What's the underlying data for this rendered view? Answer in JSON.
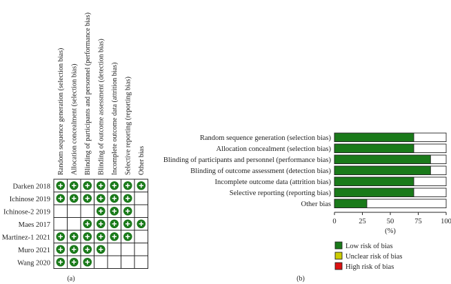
{
  "chart_data": [
    {
      "type": "table",
      "panel_label": "(a)",
      "domains": [
        "Random sequence generation (selection bias)",
        "Allocation concealment (selection bias)",
        "Blinding of participants and personnel (performance bias)",
        "Blinding of outcome assessment (detection bias)",
        "Incomplete outcome data (attrition bias)",
        "Selective reporting (reporting bias)",
        "Other bias"
      ],
      "studies": [
        {
          "name": "Darken 2018",
          "judgements": [
            "low",
            "low",
            "low",
            "low",
            "low",
            "low",
            "low"
          ]
        },
        {
          "name": "Ichinose 2019",
          "judgements": [
            "low",
            "low",
            "low",
            "low",
            "low",
            "low",
            ""
          ]
        },
        {
          "name": "Ichinose-2 2019",
          "judgements": [
            "",
            "",
            "",
            "low",
            "low",
            "low",
            ""
          ]
        },
        {
          "name": "Maes 2017",
          "judgements": [
            "",
            "",
            "low",
            "low",
            "low",
            "low",
            "low"
          ]
        },
        {
          "name": "Martinez-1 2021",
          "judgements": [
            "low",
            "low",
            "low",
            "low",
            "low",
            "low",
            ""
          ]
        },
        {
          "name": "Muro 2021",
          "judgements": [
            "low",
            "low",
            "low",
            "low",
            "",
            "",
            ""
          ]
        },
        {
          "name": "Wang 2020",
          "judgements": [
            "low",
            "low",
            "low",
            "",
            "",
            "",
            ""
          ]
        }
      ],
      "colors": {
        "low": "#1a7a1a"
      }
    },
    {
      "type": "bar",
      "orientation": "horizontal",
      "stacked": true,
      "panel_label": "(b)",
      "categories": [
        "Random sequence generation (selection bias)",
        "Allocation concealment (selection bias)",
        "Blinding of participants and personnel (performance bias)",
        "Blinding of outcome assessment (detection bias)",
        "Incomplete outcome data (attrition bias)",
        "Selective reporting (reporting bias)",
        "Other bias"
      ],
      "series": [
        {
          "name": "Low risk of bias",
          "color": "#1a7a1a",
          "values": [
            71,
            71,
            86,
            86,
            71,
            71,
            29
          ]
        },
        {
          "name": "Unclear risk of bias",
          "color": "#cccc00",
          "values": [
            0,
            0,
            0,
            0,
            0,
            0,
            0
          ]
        },
        {
          "name": "High risk of bias",
          "color": "#dd1111",
          "values": [
            0,
            0,
            0,
            0,
            0,
            0,
            0
          ]
        }
      ],
      "xlim": [
        0,
        100
      ],
      "xticks": [
        "0",
        "25",
        "50",
        "75",
        "100"
      ],
      "xlabel": "(%)",
      "legend_position": "bottom"
    }
  ]
}
